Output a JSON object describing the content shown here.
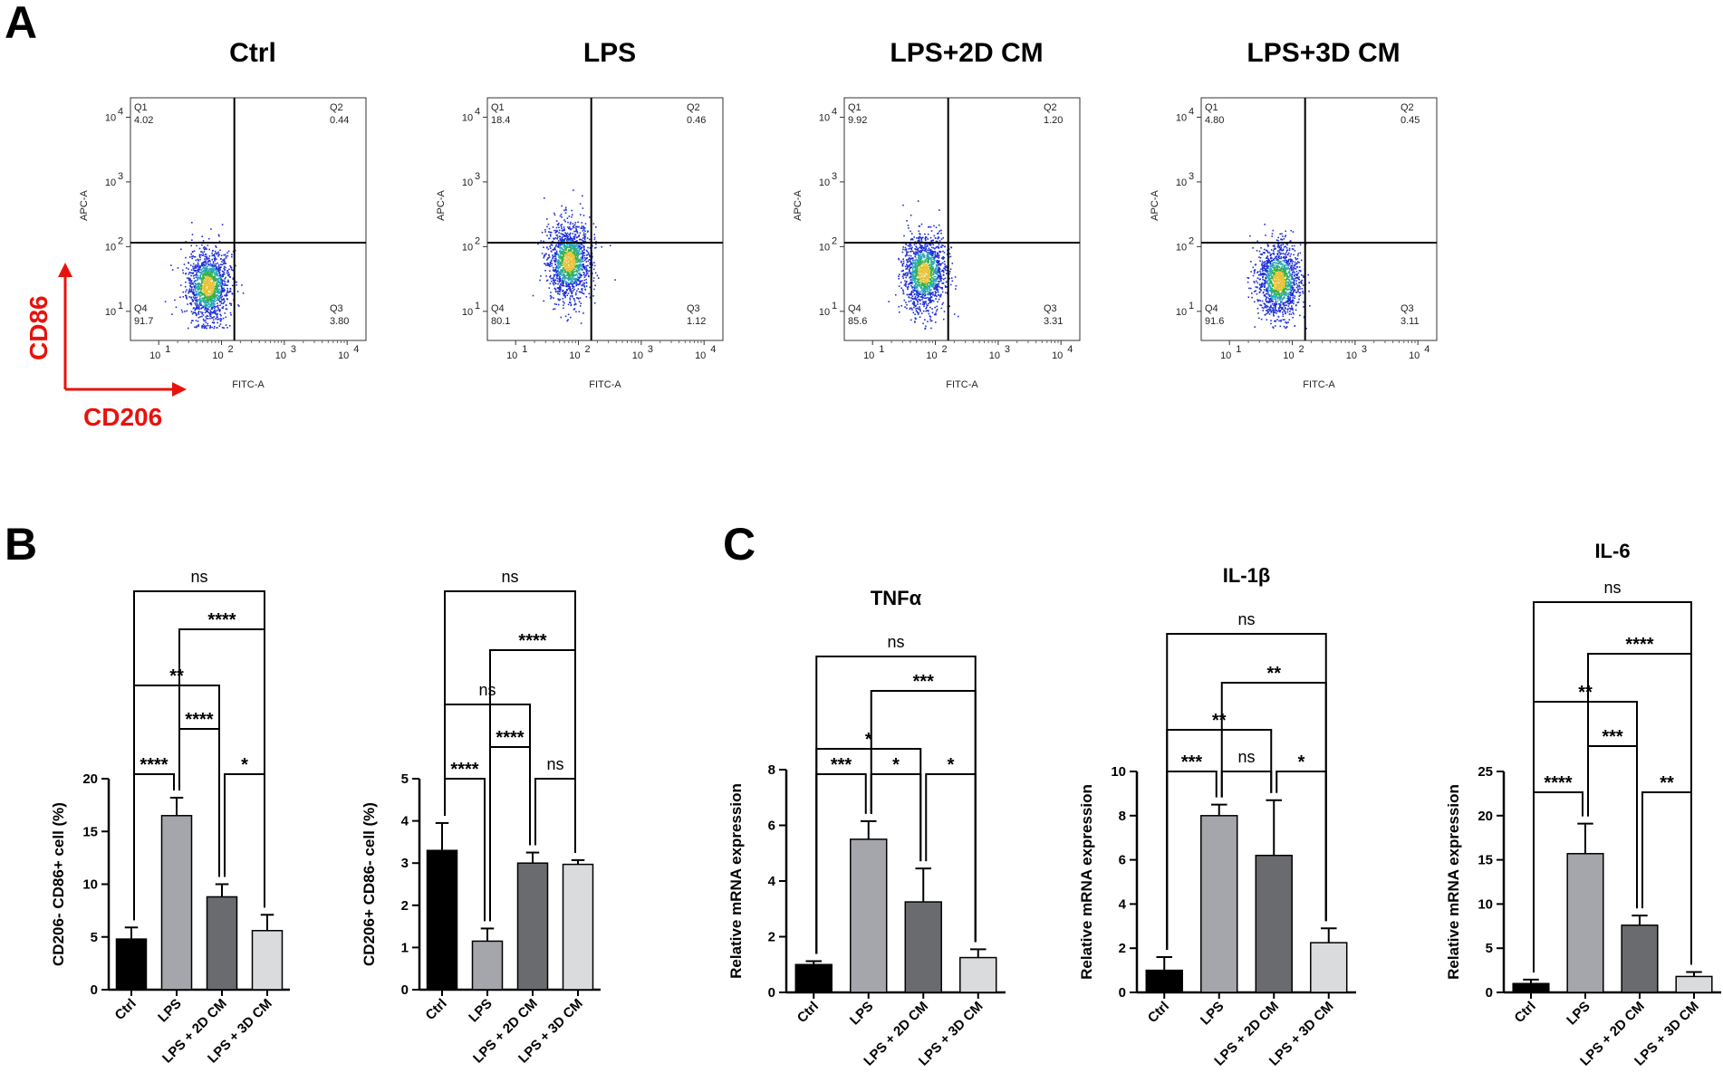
{
  "panel_labels": [
    "A",
    "B",
    "C"
  ],
  "chart_data": [
    {
      "type": "scatter",
      "subtype": "flow-cytometry",
      "title": "Ctrl",
      "xlabel": "FITC-A",
      "ylabel": "APC-A",
      "x_ticks": [
        "10",
        "10",
        "10",
        "10"
      ],
      "x_exp": [
        "1",
        "2",
        "3",
        "4"
      ],
      "y_ticks": [
        "10",
        "10",
        "10",
        "10"
      ],
      "y_exp": [
        "1",
        "2",
        "3",
        "4"
      ],
      "quadrants": [
        {
          "name": "Q1",
          "value": "4.02"
        },
        {
          "name": "Q2",
          "value": "0.44"
        },
        {
          "name": "Q3",
          "value": "3.80"
        },
        {
          "name": "Q4",
          "value": "91.7"
        }
      ],
      "gate": {
        "x": 160,
        "y": 115
      },
      "cloud": {
        "cx": 60,
        "cy": 25,
        "spread_y": 1.0
      }
    },
    {
      "type": "scatter",
      "subtype": "flow-cytometry",
      "title": "LPS",
      "xlabel": "FITC-A",
      "ylabel": "APC-A",
      "x_ticks": [
        "10",
        "10",
        "10",
        "10"
      ],
      "x_exp": [
        "1",
        "2",
        "3",
        "4"
      ],
      "y_ticks": [
        "10",
        "10",
        "10",
        "10"
      ],
      "y_exp": [
        "1",
        "2",
        "3",
        "4"
      ],
      "quadrants": [
        {
          "name": "Q1",
          "value": "18.4"
        },
        {
          "name": "Q2",
          "value": "0.46"
        },
        {
          "name": "Q3",
          "value": "1.12"
        },
        {
          "name": "Q4",
          "value": "80.1"
        }
      ],
      "gate": {
        "x": 160,
        "y": 115
      },
      "cloud": {
        "cx": 70,
        "cy": 60,
        "spread_y": 1.1
      }
    },
    {
      "type": "scatter",
      "subtype": "flow-cytometry",
      "title": "LPS+2D CM",
      "xlabel": "FITC-A",
      "ylabel": "APC-A",
      "x_ticks": [
        "10",
        "10",
        "10",
        "10"
      ],
      "x_exp": [
        "1",
        "2",
        "3",
        "4"
      ],
      "y_ticks": [
        "10",
        "10",
        "10",
        "10"
      ],
      "y_exp": [
        "1",
        "2",
        "3",
        "4"
      ],
      "quadrants": [
        {
          "name": "Q1",
          "value": "9.92"
        },
        {
          "name": "Q2",
          "value": "1.20"
        },
        {
          "name": "Q3",
          "value": "3.31"
        },
        {
          "name": "Q4",
          "value": "85.6"
        }
      ],
      "gate": {
        "x": 160,
        "y": 115
      },
      "cloud": {
        "cx": 65,
        "cy": 40,
        "spread_y": 1.05
      }
    },
    {
      "type": "scatter",
      "subtype": "flow-cytometry",
      "title": "LPS+3D CM",
      "xlabel": "FITC-A",
      "ylabel": "APC-A",
      "x_ticks": [
        "10",
        "10",
        "10",
        "10"
      ],
      "x_exp": [
        "1",
        "2",
        "3",
        "4"
      ],
      "y_ticks": [
        "10",
        "10",
        "10",
        "10"
      ],
      "y_exp": [
        "1",
        "2",
        "3",
        "4"
      ],
      "quadrants": [
        {
          "name": "Q1",
          "value": "4.80"
        },
        {
          "name": "Q2",
          "value": "0.45"
        },
        {
          "name": "Q3",
          "value": "3.11"
        },
        {
          "name": "Q4",
          "value": "91.6"
        }
      ],
      "gate": {
        "x": 160,
        "y": 115
      },
      "cloud": {
        "cx": 60,
        "cy": 30,
        "spread_y": 1.0
      }
    },
    {
      "type": "bar",
      "title": "",
      "ylabel": "CD206- CD86+ cell (%)",
      "categories": [
        "Ctrl",
        "LPS",
        "LPS + 2D CM",
        "LPS + 3D CM"
      ],
      "values": [
        4.8,
        16.5,
        8.8,
        5.6
      ],
      "errors": [
        1.1,
        1.7,
        1.2,
        1.5
      ],
      "ylim": [
        0,
        20
      ],
      "yticks": [
        0,
        5,
        10,
        15,
        20
      ],
      "colors": [
        "#000000",
        "#a5a6ab",
        "#6a6b6f",
        "#dadbdd"
      ],
      "comparisons": [
        {
          "from": 0,
          "to": 1,
          "label": "****"
        },
        {
          "from": 2,
          "to": 3,
          "label": "*"
        },
        {
          "from": 1,
          "to": 2,
          "label": "****"
        },
        {
          "from": 0,
          "to": 2,
          "label": "**"
        },
        {
          "from": 1,
          "to": 3,
          "label": "****"
        },
        {
          "from": 0,
          "to": 3,
          "label": "ns"
        }
      ]
    },
    {
      "type": "bar",
      "title": "",
      "ylabel": "CD206+ CD86- cell (%)",
      "categories": [
        "Ctrl",
        "LPS",
        "LPS + 2D CM",
        "LPS + 3D CM"
      ],
      "values": [
        3.3,
        1.15,
        3.0,
        2.97
      ],
      "errors": [
        0.65,
        0.3,
        0.25,
        0.1
      ],
      "ylim": [
        0,
        5
      ],
      "yticks": [
        0,
        1,
        2,
        3,
        4,
        5
      ],
      "colors": [
        "#000000",
        "#a5a6ab",
        "#6a6b6f",
        "#dadbdd"
      ],
      "comparisons": [
        {
          "from": 0,
          "to": 1,
          "label": "****"
        },
        {
          "from": 2,
          "to": 3,
          "label": "ns"
        },
        {
          "from": 1,
          "to": 2,
          "label": "****"
        },
        {
          "from": 0,
          "to": 2,
          "label": "ns"
        },
        {
          "from": 1,
          "to": 3,
          "label": "****"
        },
        {
          "from": 0,
          "to": 3,
          "label": "ns"
        }
      ]
    },
    {
      "type": "bar",
      "title": "TNFα",
      "ylabel": "Relative mRNA expression",
      "categories": [
        "Ctrl",
        "LPS",
        "LPS + 2D CM",
        "LPS + 3D CM"
      ],
      "values": [
        1.0,
        5.5,
        3.25,
        1.25
      ],
      "errors": [
        0.12,
        0.65,
        1.2,
        0.3
      ],
      "ylim": [
        0,
        8
      ],
      "yticks": [
        0,
        2,
        4,
        6,
        8
      ],
      "colors": [
        "#000000",
        "#a5a6ab",
        "#6a6b6f",
        "#dadbdd"
      ],
      "comparisons": [
        {
          "from": 0,
          "to": 1,
          "label": "***"
        },
        {
          "from": 1,
          "to": 2,
          "label": "*"
        },
        {
          "from": 2,
          "to": 3,
          "label": "*"
        },
        {
          "from": 0,
          "to": 2,
          "label": "*"
        },
        {
          "from": 1,
          "to": 3,
          "label": "***"
        },
        {
          "from": 0,
          "to": 3,
          "label": "ns"
        }
      ]
    },
    {
      "type": "bar",
      "title": "IL-1β",
      "ylabel": "Relative mRNA expression",
      "categories": [
        "Ctrl",
        "LPS",
        "LPS + 2D CM",
        "LPS + 3D CM"
      ],
      "values": [
        1.0,
        8.0,
        6.2,
        2.25
      ],
      "errors": [
        0.6,
        0.5,
        2.5,
        0.65
      ],
      "ylim": [
        0,
        10
      ],
      "yticks": [
        0,
        2,
        4,
        6,
        8,
        10
      ],
      "colors": [
        "#000000",
        "#a5a6ab",
        "#6a6b6f",
        "#dadbdd"
      ],
      "comparisons": [
        {
          "from": 0,
          "to": 1,
          "label": "***"
        },
        {
          "from": 1,
          "to": 2,
          "label": "ns"
        },
        {
          "from": 2,
          "to": 3,
          "label": "*"
        },
        {
          "from": 0,
          "to": 2,
          "label": "**"
        },
        {
          "from": 1,
          "to": 3,
          "label": "**"
        },
        {
          "from": 0,
          "to": 3,
          "label": "ns"
        }
      ]
    },
    {
      "type": "bar",
      "title": "IL-6",
      "ylabel": "Relative mRNA expression",
      "categories": [
        "Ctrl",
        "LPS",
        "LPS + 2D CM",
        "LPS + 3D CM"
      ],
      "values": [
        1.0,
        15.7,
        7.6,
        1.8
      ],
      "errors": [
        0.45,
        3.4,
        1.1,
        0.5
      ],
      "ylim": [
        0,
        25
      ],
      "yticks": [
        0,
        5,
        10,
        15,
        20,
        25
      ],
      "colors": [
        "#000000",
        "#a5a6ab",
        "#6a6b6f",
        "#dadbdd"
      ],
      "comparisons": [
        {
          "from": 0,
          "to": 1,
          "label": "****"
        },
        {
          "from": 2,
          "to": 3,
          "label": "**"
        },
        {
          "from": 1,
          "to": 2,
          "label": "***"
        },
        {
          "from": 0,
          "to": 2,
          "label": "**"
        },
        {
          "from": 1,
          "to": 3,
          "label": "****"
        },
        {
          "from": 0,
          "to": 3,
          "label": "ns"
        }
      ]
    }
  ],
  "axis_legend": {
    "y_marker": "CD86",
    "x_marker": "CD206",
    "color": "#e8120c"
  }
}
